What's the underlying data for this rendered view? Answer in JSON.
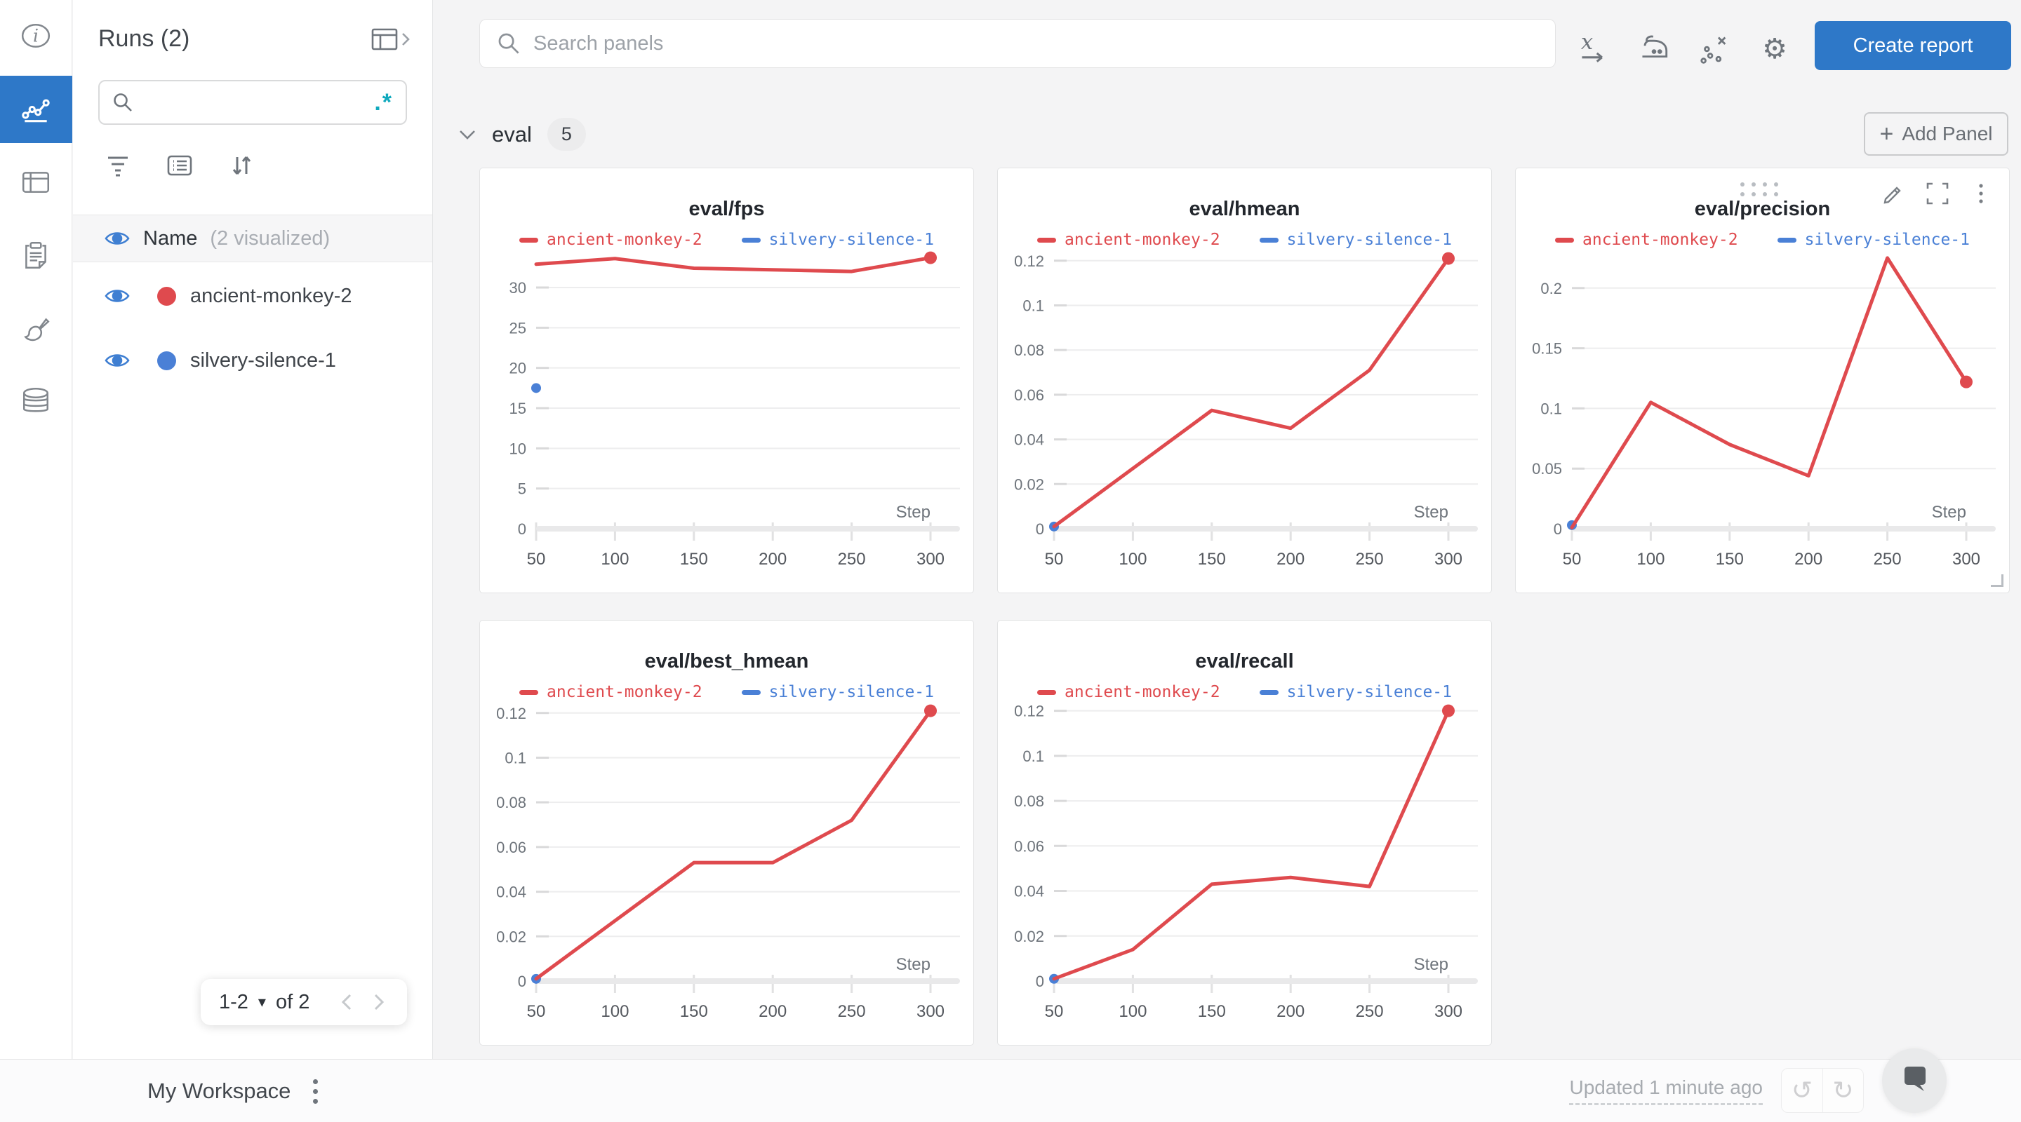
{
  "rail": {
    "items": [
      {
        "icon": "info-icon",
        "active": false
      },
      {
        "icon": "line-chart-icon",
        "active": true
      },
      {
        "icon": "table-icon",
        "active": false
      },
      {
        "icon": "clipboard-icon",
        "active": false
      },
      {
        "icon": "brush-icon",
        "active": false
      },
      {
        "icon": "database-icon",
        "active": false
      }
    ]
  },
  "runs_panel": {
    "title": "Runs (2)",
    "search": {
      "value": "",
      "regex_hint": ".*"
    },
    "header": {
      "label": "Name",
      "sublabel": "(2 visualized)"
    },
    "runs": [
      {
        "name": "ancient-monkey-2",
        "color": "#df4a4e",
        "visible": true
      },
      {
        "name": "silvery-silence-1",
        "color": "#4a80d6",
        "visible": true
      }
    ],
    "pagination": {
      "range": "1-2",
      "of": "of 2"
    }
  },
  "topbar": {
    "search_placeholder": "Search panels",
    "create_report": "Create report"
  },
  "section": {
    "title": "eval",
    "count": "5",
    "add_panel": "Add Panel"
  },
  "chart_data": [
    {
      "type": "line",
      "title": "eval/fps",
      "xlabel": "Step",
      "x": [
        50,
        100,
        150,
        200,
        250,
        300
      ],
      "xticks": [
        50,
        100,
        150,
        200,
        250,
        300
      ],
      "yticks": [
        0,
        5,
        10,
        15,
        20,
        25,
        30
      ],
      "ylim": [
        0,
        33.75
      ],
      "series": [
        {
          "name": "ancient-monkey-2",
          "color": "#df4a4e",
          "values": [
            32.9,
            33.6,
            32.4,
            32.2,
            32.0,
            33.7
          ]
        },
        {
          "name": "silvery-silence-1",
          "color": "#4a80d6",
          "values": [
            17.5,
            null,
            null,
            null,
            null,
            null
          ]
        }
      ],
      "hovered": false
    },
    {
      "type": "line",
      "title": "eval/hmean",
      "xlabel": "Step",
      "x": [
        50,
        100,
        150,
        200,
        250,
        300
      ],
      "xticks": [
        50,
        100,
        150,
        200,
        250,
        300
      ],
      "yticks": [
        0,
        0.02,
        0.04,
        0.06,
        0.08,
        0.1,
        0.12
      ],
      "ylim": [
        0,
        0.1215
      ],
      "series": [
        {
          "name": "ancient-monkey-2",
          "color": "#df4a4e",
          "values": [
            0.001,
            0.027,
            0.053,
            0.045,
            0.071,
            0.121
          ]
        },
        {
          "name": "silvery-silence-1",
          "color": "#4a80d6",
          "values": [
            0.001,
            null,
            null,
            null,
            null,
            null
          ]
        }
      ],
      "hovered": false
    },
    {
      "type": "line",
      "title": "eval/precision",
      "xlabel": "Step",
      "x": [
        50,
        100,
        150,
        200,
        250,
        300
      ],
      "xticks": [
        50,
        100,
        150,
        200,
        250,
        300
      ],
      "yticks": [
        0,
        0.05,
        0.1,
        0.15,
        0.2
      ],
      "ylim": [
        0,
        0.2255
      ],
      "series": [
        {
          "name": "ancient-monkey-2",
          "color": "#df4a4e",
          "values": [
            0.001,
            0.105,
            0.07,
            0.044,
            0.225,
            0.122
          ]
        },
        {
          "name": "silvery-silence-1",
          "color": "#4a80d6",
          "values": [
            0.003,
            null,
            null,
            null,
            null,
            null
          ]
        }
      ],
      "hovered": true
    },
    {
      "type": "line",
      "title": "eval/best_hmean",
      "xlabel": "Step",
      "x": [
        50,
        100,
        150,
        200,
        250,
        300
      ],
      "xticks": [
        50,
        100,
        150,
        200,
        250,
        300
      ],
      "yticks": [
        0,
        0.02,
        0.04,
        0.06,
        0.08,
        0.1,
        0.12
      ],
      "ylim": [
        0,
        0.1215
      ],
      "series": [
        {
          "name": "ancient-monkey-2",
          "color": "#df4a4e",
          "values": [
            0.001,
            0.027,
            0.053,
            0.053,
            0.072,
            0.121
          ]
        },
        {
          "name": "silvery-silence-1",
          "color": "#4a80d6",
          "values": [
            0.001,
            null,
            null,
            null,
            null,
            null
          ]
        }
      ],
      "hovered": false
    },
    {
      "type": "line",
      "title": "eval/recall",
      "xlabel": "Step",
      "x": [
        50,
        100,
        150,
        200,
        250,
        300
      ],
      "xticks": [
        50,
        100,
        150,
        200,
        250,
        300
      ],
      "yticks": [
        0,
        0.02,
        0.04,
        0.06,
        0.08,
        0.1,
        0.12
      ],
      "ylim": [
        0,
        0.1205
      ],
      "series": [
        {
          "name": "ancient-monkey-2",
          "color": "#df4a4e",
          "values": [
            0.001,
            0.014,
            0.043,
            0.046,
            0.042,
            0.12
          ]
        },
        {
          "name": "silvery-silence-1",
          "color": "#4a80d6",
          "values": [
            0.001,
            null,
            null,
            null,
            null,
            null
          ]
        }
      ],
      "hovered": false
    }
  ],
  "bottombar": {
    "workspace": "My Workspace",
    "updated": "Updated 1 minute ago"
  },
  "colors": {
    "accent_blue": "#2e78c8",
    "run_red": "#df4a4e",
    "run_blue": "#4a80d6",
    "regex_teal": "#0fa9bd"
  }
}
